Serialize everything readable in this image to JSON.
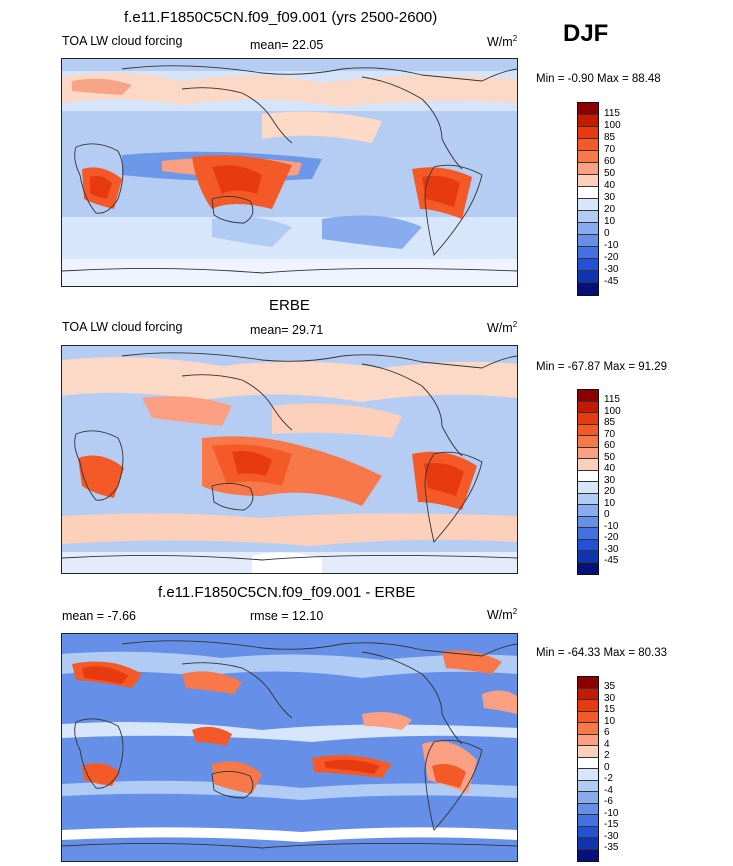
{
  "season": "DJF",
  "panels": [
    {
      "title": "f.e11.F1850C5CN.f09_f09.001 (yrs 2500-2600)",
      "left_label": "TOA LW cloud forcing",
      "center_label": "mean=  22.05",
      "units": "W/m",
      "units_sup": "2",
      "minmax": "Min =  -0.90 Max =  88.48",
      "levels": [
        "115",
        "100",
        "85",
        "70",
        "60",
        "50",
        "40",
        "30",
        "20",
        "10",
        "0",
        "-10",
        "-20",
        "-30",
        "-45"
      ],
      "colors": [
        "#8b0000",
        "#c41a00",
        "#e83a10",
        "#f45a28",
        "#f8784a",
        "#fba082",
        "#fdd0bc",
        "#ffffff",
        "#d8e6fb",
        "#b0ccf5",
        "#88acee",
        "#6690e8",
        "#4470e2",
        "#2250d6",
        "#1034b0",
        "#05107a"
      ]
    },
    {
      "title": "ERBE",
      "left_label": "TOA LW cloud forcing",
      "center_label": "mean=  29.71",
      "units": "W/m",
      "units_sup": "2",
      "minmax": "Min = -67.87 Max =  91.29",
      "levels": [
        "115",
        "100",
        "85",
        "70",
        "60",
        "50",
        "40",
        "30",
        "20",
        "10",
        "0",
        "-10",
        "-20",
        "-30",
        "-45"
      ],
      "colors": [
        "#8b0000",
        "#c41a00",
        "#e83a10",
        "#f45a28",
        "#f8784a",
        "#fba082",
        "#fdd0bc",
        "#ffffff",
        "#d8e6fb",
        "#b0ccf5",
        "#88acee",
        "#6690e8",
        "#4470e2",
        "#2250d6",
        "#1034b0",
        "#05107a"
      ]
    },
    {
      "title": "f.e11.F1850C5CN.f09_f09.001 - ERBE",
      "left_label": "mean =  -7.66",
      "center_label": "rmse =  12.10",
      "units": "W/m",
      "units_sup": "2",
      "minmax": "Min = -64.33 Max =  80.33",
      "levels": [
        "35",
        "30",
        "15",
        "10",
        "6",
        "4",
        "2",
        "0",
        "-2",
        "-4",
        "-6",
        "-10",
        "-15",
        "-30",
        "-35"
      ],
      "colors": [
        "#8b0000",
        "#c41a00",
        "#e83a10",
        "#f45a28",
        "#f8784a",
        "#fba082",
        "#fdd0bc",
        "#ffffff",
        "#d8e6fb",
        "#b0ccf5",
        "#88acee",
        "#6690e8",
        "#4470e2",
        "#2250d6",
        "#1034b0",
        "#05107a"
      ]
    }
  ]
}
